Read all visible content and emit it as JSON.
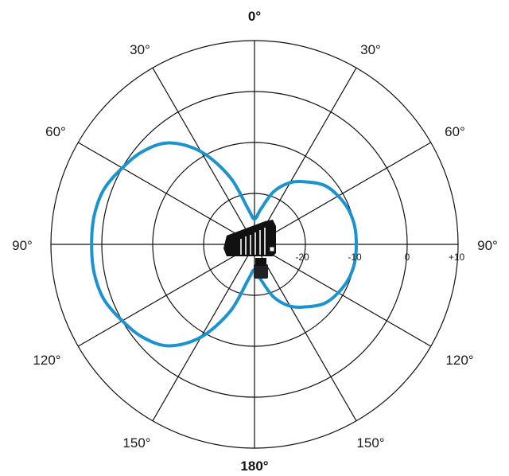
{
  "chart_data": {
    "type": "polar",
    "angle_labels": {
      "top": "0°",
      "bottom": "180°",
      "upper_left": "30°",
      "upper_right": "30°",
      "mid_upper_left": "60°",
      "mid_upper_right": "60°",
      "left": "90°",
      "right": "90°",
      "mid_lower_left": "120°",
      "mid_lower_right": "120°",
      "lower_left": "150°",
      "lower_right": "150°"
    },
    "radial_ticks": [
      "-20",
      "-10",
      "0",
      "+10"
    ],
    "radial_range_db": [
      -30,
      10
    ],
    "grid_spoke_step_deg": 30,
    "series": [
      {
        "color": "#1b93cf",
        "points_deg_db": [
          [
            0,
            -25
          ],
          [
            10,
            -23
          ],
          [
            20,
            -19
          ],
          [
            30,
            -16
          ],
          [
            40,
            -14
          ],
          [
            50,
            -12
          ],
          [
            60,
            -11
          ],
          [
            70,
            -10.3
          ],
          [
            80,
            -10.0
          ],
          [
            90,
            -10.0
          ],
          [
            100,
            -10.0
          ],
          [
            110,
            -10.3
          ],
          [
            120,
            -11
          ],
          [
            130,
            -12
          ],
          [
            140,
            -14
          ],
          [
            150,
            -16
          ],
          [
            160,
            -19
          ],
          [
            170,
            -23
          ],
          [
            180,
            -25
          ],
          [
            190,
            -23
          ],
          [
            200,
            -16
          ],
          [
            210,
            -9
          ],
          [
            220,
            -4
          ],
          [
            230,
            -1.5
          ],
          [
            240,
            0
          ],
          [
            250,
            1.5
          ],
          [
            260,
            2
          ],
          [
            270,
            2
          ],
          [
            280,
            2
          ],
          [
            290,
            1.5
          ],
          [
            300,
            0
          ],
          [
            310,
            -1.5
          ],
          [
            320,
            -4
          ],
          [
            330,
            -9
          ],
          [
            340,
            -16
          ],
          [
            350,
            -23
          ]
        ]
      }
    ]
  },
  "icon": "microphone-icon",
  "colors": {
    "grid": "#111111",
    "curve": "#1b93cf",
    "mic": "#111111"
  }
}
